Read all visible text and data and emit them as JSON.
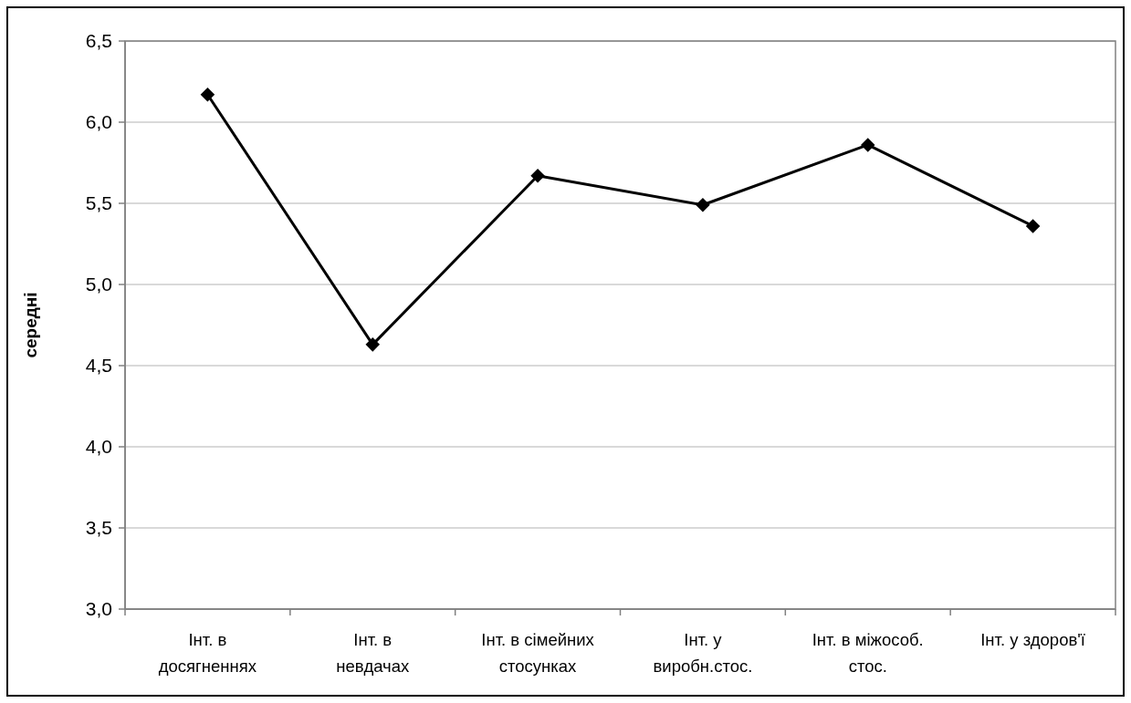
{
  "chart_data": {
    "type": "line",
    "ylabel": "середні",
    "categories": [
      "Інт. в\nдосягненнях",
      "Інт. в\nневдачах",
      "Інт. в сімейних\nстосунках",
      "Інт. у\nвиробн.стос.",
      "Інт. в міжособ.\nстос.",
      "Інт. у здоров'ї"
    ],
    "series": [
      {
        "color": "#000000",
        "values": [
          6.17,
          4.63,
          5.67,
          5.49,
          5.86,
          5.36
        ]
      }
    ],
    "ylim": [
      3,
      6.5
    ],
    "yticks": [
      {
        "value": 3,
        "label": "3,0"
      },
      {
        "value": 3.5,
        "label": "3,5"
      },
      {
        "value": 4,
        "label": "4,0"
      },
      {
        "value": 4.5,
        "label": "4,5"
      },
      {
        "value": 5,
        "label": "5,0"
      },
      {
        "value": 5.5,
        "label": "5,5"
      },
      {
        "value": 6,
        "label": "6,0"
      },
      {
        "value": 6.5,
        "label": "6,5"
      }
    ],
    "grid": "y",
    "marker": "diamond",
    "line_style": "solid"
  }
}
